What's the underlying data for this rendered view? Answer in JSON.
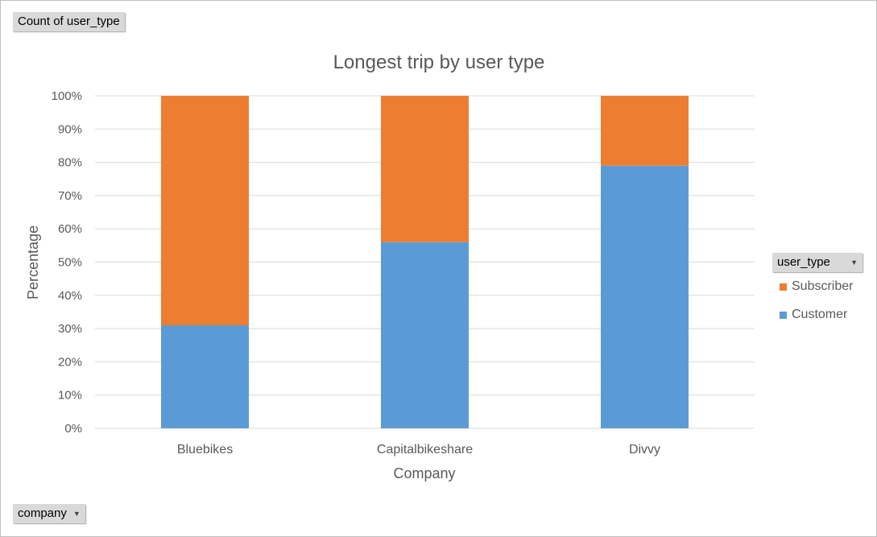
{
  "filters": {
    "values_field": "Count of user_type",
    "axis_field": "company",
    "legend_field": "user_type"
  },
  "colors": {
    "Subscriber": "#ed7d31",
    "Customer": "#5b9bd5",
    "grid": "#d9d9d9",
    "text": "#595959"
  },
  "chart_data": {
    "type": "bar",
    "stacked": "percent",
    "title": "Longest trip by user type",
    "xlabel": "Company",
    "ylabel": "Percentage",
    "categories": [
      "Bluebikes",
      "Capitalbikeshare",
      "Divvy"
    ],
    "series": [
      {
        "name": "Customer",
        "values": [
          0.31,
          0.56,
          0.79
        ]
      },
      {
        "name": "Subscriber",
        "values": [
          0.69,
          0.44,
          0.21
        ]
      }
    ],
    "yticks": [
      "0%",
      "10%",
      "20%",
      "30%",
      "40%",
      "50%",
      "60%",
      "70%",
      "80%",
      "90%",
      "100%"
    ],
    "ylim": [
      0,
      1
    ],
    "grid": true,
    "legend": {
      "position": "right",
      "order": [
        "Subscriber",
        "Customer"
      ]
    }
  }
}
